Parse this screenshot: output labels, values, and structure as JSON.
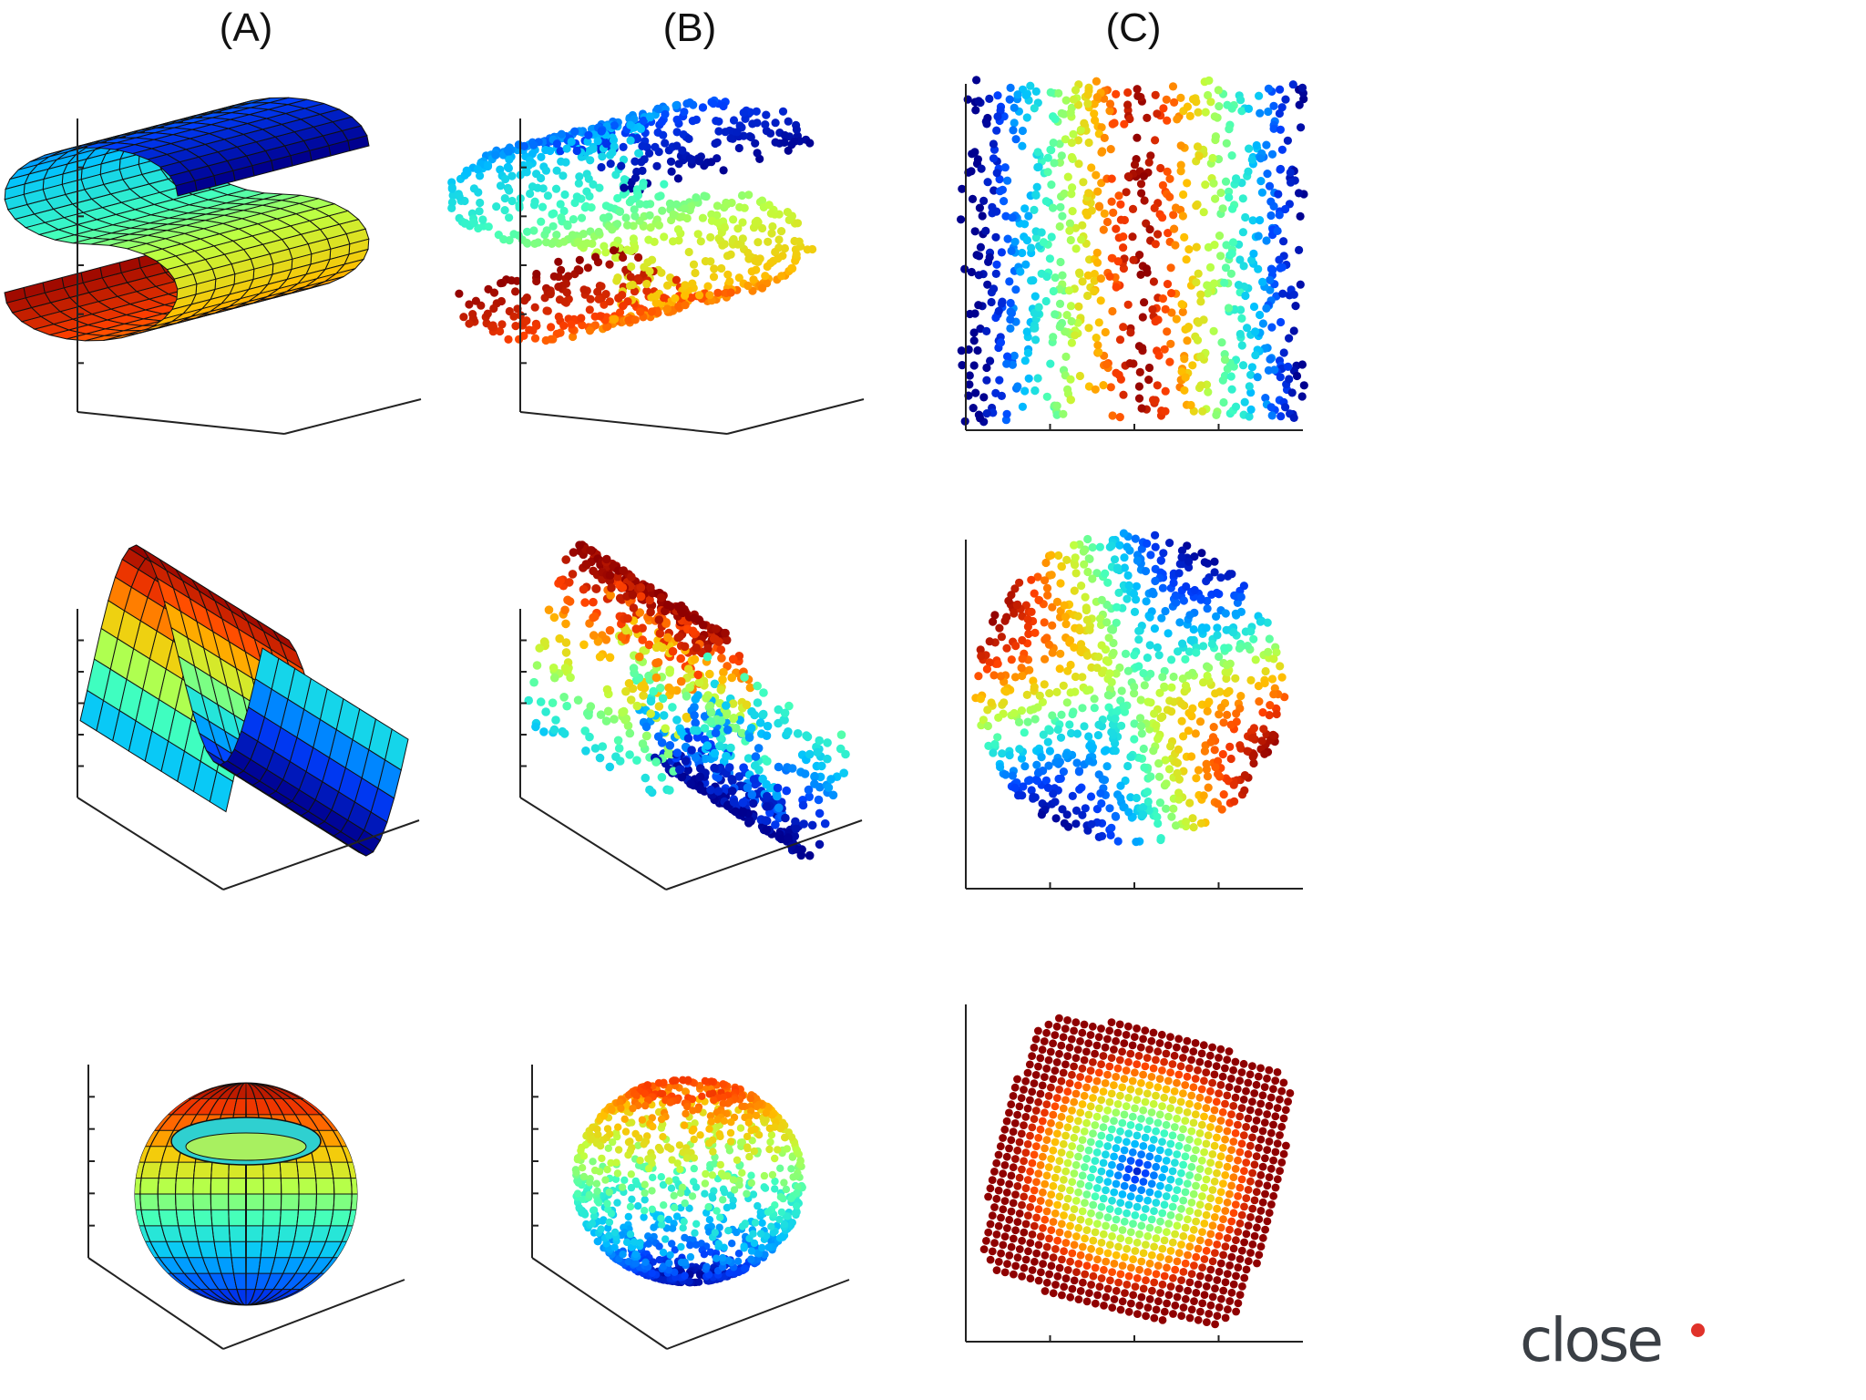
{
  "columns": [
    {
      "label": "(A)"
    },
    {
      "label": "(B)"
    },
    {
      "label": "(C)"
    }
  ],
  "rows": [
    {
      "shape": "s-curve"
    },
    {
      "shape": "sine-sheet"
    },
    {
      "shape": "open-sphere"
    }
  ],
  "column_panel_kinds": [
    "3d-surface",
    "3d-scatter",
    "2d-embedding"
  ],
  "colormap": [
    "#00008f",
    "#0040ff",
    "#00c0ff",
    "#40ffbf",
    "#bfff40",
    "#ffc000",
    "#ff4000",
    "#8f0000"
  ],
  "logo": {
    "text": "close",
    "accent": "#e0322a"
  }
}
